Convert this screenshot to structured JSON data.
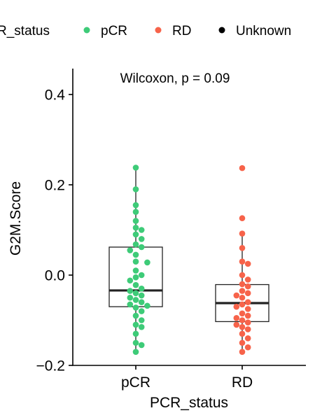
{
  "chart_data": {
    "type": "box",
    "xlabel": "PCR_status",
    "ylabel": "G2M.Score",
    "ylim": [
      -0.2,
      0.45
    ],
    "yticks": [
      -0.2,
      0.0,
      0.2,
      0.4
    ],
    "ytick_labels": [
      "−0.2",
      "0.0",
      "0.2",
      "0.4"
    ],
    "categories": [
      "pCR",
      "RD"
    ],
    "annotation": "Wilcoxon, p = 0.09",
    "grid": false,
    "legend": {
      "position": "top",
      "title": "R_status",
      "entries": [
        {
          "label": "pCR",
          "color": "#3ecb78"
        },
        {
          "label": "RD",
          "color": "#f7634a"
        },
        {
          "label": "Unknown",
          "color": "#000000"
        }
      ]
    },
    "boxes": [
      {
        "category": "pCR",
        "q1": -0.07,
        "median": -0.034,
        "q3": 0.062,
        "whisker_low": -0.17,
        "whisker_high": 0.238
      },
      {
        "category": "RD",
        "q1": -0.103,
        "median": -0.062,
        "q3": -0.021,
        "whisker_low": -0.17,
        "whisker_high": 0.092
      }
    ],
    "series": [
      {
        "category": "pCR",
        "color": "#3ecb78",
        "values": [
          0.238,
          0.19,
          0.155,
          0.14,
          0.12,
          0.105,
          0.1,
          0.09,
          0.08,
          0.068,
          0.062,
          0.055,
          0.045,
          0.03,
          0.028,
          0.01,
          0.0,
          -0.005,
          -0.012,
          -0.022,
          -0.03,
          -0.035,
          -0.04,
          -0.045,
          -0.05,
          -0.055,
          -0.06,
          -0.065,
          -0.068,
          -0.072,
          -0.08,
          -0.09,
          -0.1,
          -0.11,
          -0.115,
          -0.13,
          -0.15,
          -0.155,
          -0.17
        ]
      },
      {
        "category": "RD",
        "color": "#f7634a",
        "values": [
          0.237,
          0.126,
          0.092,
          0.06,
          0.03,
          0.025,
          0.0,
          -0.01,
          -0.02,
          -0.025,
          -0.035,
          -0.04,
          -0.045,
          -0.05,
          -0.06,
          -0.065,
          -0.07,
          -0.075,
          -0.085,
          -0.09,
          -0.095,
          -0.1,
          -0.105,
          -0.11,
          -0.115,
          -0.12,
          -0.13,
          -0.14,
          -0.15,
          -0.16,
          -0.17
        ]
      }
    ]
  }
}
